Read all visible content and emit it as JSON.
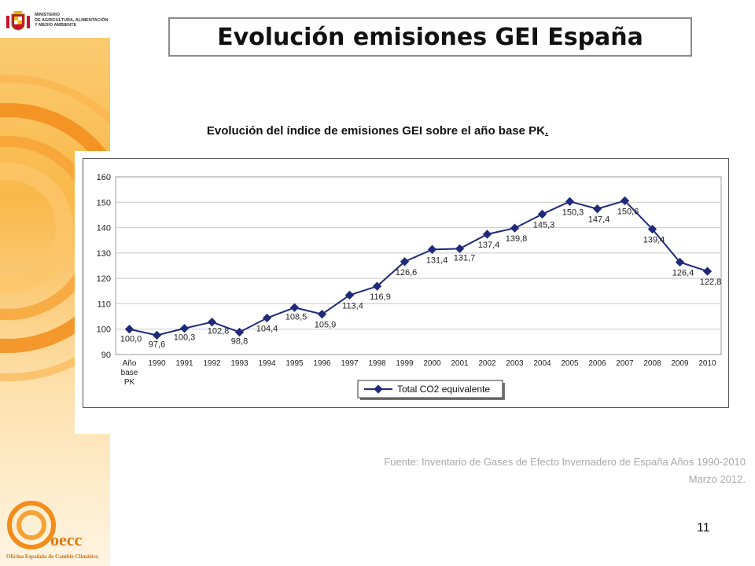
{
  "ministry": {
    "lines": [
      "MINISTERIO",
      "DE AGRICULTURA, ALIMENTACIÓN",
      "Y MEDIO AMBIENTE"
    ]
  },
  "title": "Evolución emisiones GEI España",
  "chart_caption": "Evolución del índice de emisiones GEI sobre el año base PK",
  "caption_trailing": ".",
  "source": {
    "line1": "Fuente:  Inventario de Gases de Efecto Invernadero de España Años 1990-2010",
    "line2": "Marzo 2012."
  },
  "page_number": "11",
  "oecc": {
    "name": "oecc",
    "subtitle": "Oficina Española de Cambio Climático"
  },
  "colors": {
    "series": "#1f2a7a",
    "orange": "#f7941d",
    "grid": "#c8c8c8"
  },
  "chart_data": {
    "type": "line",
    "categories": [
      "Año base PK",
      "1990",
      "1991",
      "1992",
      "1993",
      "1994",
      "1995",
      "1996",
      "1997",
      "1998",
      "1999",
      "2000",
      "2001",
      "2002",
      "2003",
      "2004",
      "2005",
      "2006",
      "2007",
      "2008",
      "2009",
      "2010"
    ],
    "category_lines": [
      [
        "Año",
        "base",
        "PK"
      ],
      [
        "1990"
      ],
      [
        "1991"
      ],
      [
        "1992"
      ],
      [
        "1993"
      ],
      [
        "1994"
      ],
      [
        "1995"
      ],
      [
        "1996"
      ],
      [
        "1997"
      ],
      [
        "1998"
      ],
      [
        "1999"
      ],
      [
        "2000"
      ],
      [
        "2001"
      ],
      [
        "2002"
      ],
      [
        "2003"
      ],
      [
        "2004"
      ],
      [
        "2005"
      ],
      [
        "2006"
      ],
      [
        "2007"
      ],
      [
        "2008"
      ],
      [
        "2009"
      ],
      [
        "2010"
      ]
    ],
    "series": [
      {
        "name": "Total CO2 equivalente",
        "values": [
          100.0,
          97.6,
          100.3,
          102.8,
          98.8,
          104.4,
          108.5,
          105.9,
          113.4,
          116.9,
          126.6,
          131.4,
          131.7,
          137.4,
          139.8,
          145.3,
          150.3,
          147.4,
          150.6,
          139.4,
          126.4,
          122.8
        ],
        "labels": [
          "100,0",
          "97,6",
          "100,3",
          "102,8",
          "98,8",
          "104,4",
          "108,5",
          "105,9",
          "113,4",
          "116,9",
          "126,6",
          "131,4",
          "131,7",
          "137,4",
          "139,8",
          "145,3",
          "150,3",
          "147,4",
          "150,6",
          "139,4",
          "126,4",
          "122,8"
        ]
      }
    ],
    "yticks": [
      "90",
      "100",
      "110",
      "120",
      "130",
      "140",
      "150",
      "160"
    ],
    "ylim": [
      90,
      160
    ],
    "grid": true,
    "legend_position": "bottom"
  }
}
